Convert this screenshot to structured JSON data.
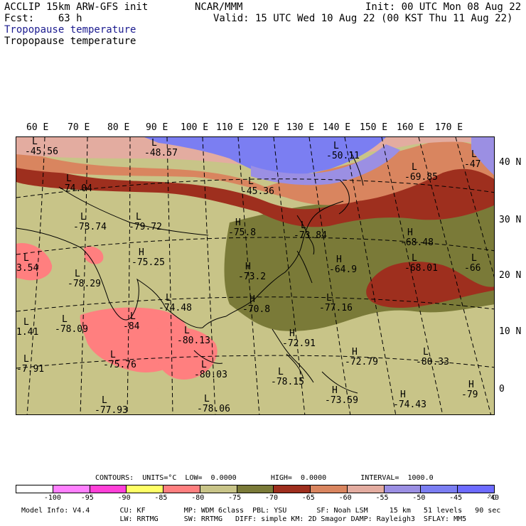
{
  "header": {
    "model_line": "ACCLIP 15km ARW-GFS init",
    "fcst_line": "Fcst:    63 h",
    "center": "NCAR/MMM",
    "init": "Init: 00 UTC Mon 08 Aug 22",
    "valid": "Valid: 15 UTC Wed 10 Aug 22 (00 KST Thu 11 Aug 22)",
    "field_title_1": "Tropopause temperature",
    "field_title_2": "Tropopause temperature"
  },
  "map": {
    "longitude_labels": [
      "60 E",
      "70 E",
      "80 E",
      "90 E",
      "100 E",
      "110 E",
      "120 E",
      "130 E",
      "140 E",
      "150 E",
      "160 E",
      "170 E"
    ],
    "latitude_labels": [
      "40 N",
      "30 N",
      "20 N",
      "10 N",
      "0"
    ],
    "markers": [
      {
        "type": "L",
        "value": "-45.56"
      },
      {
        "type": "L",
        "value": "-48.57"
      },
      {
        "type": "L",
        "value": "-50.11"
      },
      {
        "type": "L",
        "value": "-47"
      },
      {
        "type": "L",
        "value": "-45.36"
      },
      {
        "type": "L",
        "value": "-74.04"
      },
      {
        "type": "L",
        "value": "-69.85"
      },
      {
        "type": "L",
        "value": "-73.74"
      },
      {
        "type": "L",
        "value": "-79.72"
      },
      {
        "type": "H",
        "value": "-75.8"
      },
      {
        "type": "L",
        "value": "-73.84"
      },
      {
        "type": "H",
        "value": "-68.48"
      },
      {
        "type": "L",
        "value": "3.54"
      },
      {
        "type": "H",
        "value": "-75.25"
      },
      {
        "type": "H",
        "value": "-73.2"
      },
      {
        "type": "H",
        "value": "-64.9"
      },
      {
        "type": "L",
        "value": "-68.01"
      },
      {
        "type": "L",
        "value": "-66"
      },
      {
        "type": "L",
        "value": "-78.29"
      },
      {
        "type": "L",
        "value": "-74.48"
      },
      {
        "type": "H",
        "value": "-70.8"
      },
      {
        "type": "L",
        "value": "-77.16"
      },
      {
        "type": "L",
        "value": "-78.09"
      },
      {
        "type": "L",
        "value": "-84"
      },
      {
        "type": "L",
        "value": "1.41"
      },
      {
        "type": "L",
        "value": "-80.13"
      },
      {
        "type": "H",
        "value": "-72.91"
      },
      {
        "type": "H",
        "value": "-72.79"
      },
      {
        "type": "L",
        "value": "-80.33"
      },
      {
        "type": "L",
        "value": "-75.76"
      },
      {
        "type": "L",
        "value": "-80.03"
      },
      {
        "type": "L",
        "value": "-78.15"
      },
      {
        "type": "L",
        "value": "-7.91"
      },
      {
        "type": "H",
        "value": "-73.59"
      },
      {
        "type": "H",
        "value": "-74.43"
      },
      {
        "type": "H",
        "value": "-79"
      },
      {
        "type": "L",
        "value": "-77.93"
      },
      {
        "type": "L",
        "value": "-78.06"
      }
    ]
  },
  "contours": {
    "info": "CONTOURS:  UNITS=°C  LOW=  0.0000        HIGH=  0.0000        INTERVAL=  1000.0"
  },
  "colorbar": {
    "colors": [
      "#ffffff",
      "#ff80ff",
      "#ff40d8",
      "#ffff66",
      "#ff7f7f",
      "#c8c488",
      "#7a7a38",
      "#9e2f1e",
      "#d9855f",
      "#e3aca0",
      "#9b8fe3",
      "#7b7ef2",
      "#6d6bff"
    ],
    "ticks": [
      "-100",
      "-95",
      "-90",
      "-85",
      "-80",
      "-75",
      "-70",
      "-65",
      "-60",
      "-55",
      "-50",
      "-45",
      "-40"
    ],
    "unit": "°C"
  },
  "footer": {
    "line1": "Model Info: V4.4       CU: KF         MP: WDM 6class  PBL: YSU       SF: Noah LSM     15 km   51 levels   90 sec",
    "line2": "                       LW: RRTMG      SW: RRTMG   DIFF: simple KM: 2D Smagor DAMP: Rayleigh3  SFLAY: MM5"
  }
}
